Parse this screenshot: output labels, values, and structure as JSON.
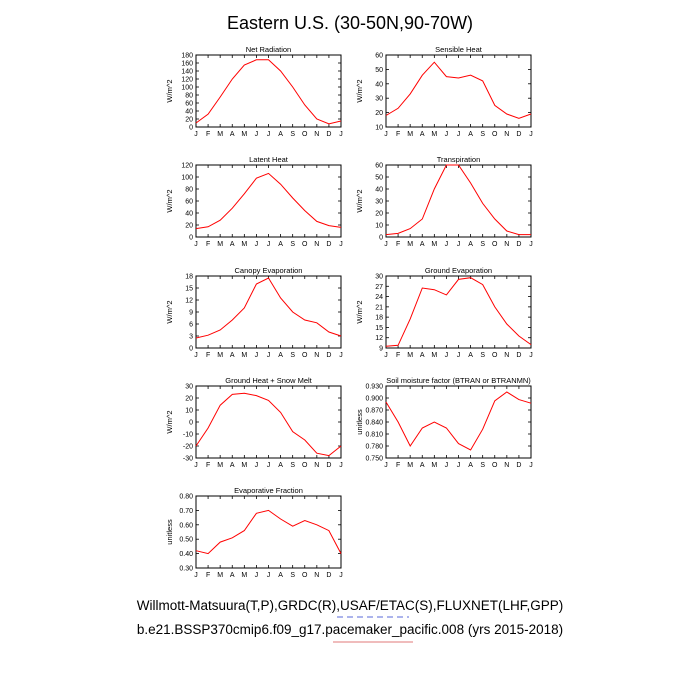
{
  "title": "Eastern U.S. (30-50N,90-70W)",
  "months": [
    "J",
    "F",
    "M",
    "A",
    "M",
    "J",
    "J",
    "A",
    "S",
    "O",
    "N",
    "D",
    "J"
  ],
  "footer": {
    "line1": "Willmott-Matsuura(T,P),GRDC(R),USAF/ETAC(S),FLUXNET(LHF,GPP)",
    "line2": "b.e21.BSSP370cmip6.f09_g17.pacemaker_pacific.008 (yrs 2015-2018)"
  },
  "colors": {
    "series": "#ff0000",
    "underline_blue": "#5a6ad8",
    "underline_red": "#e07a7a"
  },
  "chart_data": [
    {
      "type": "line",
      "title": "Net Radiation",
      "ylabel": "W/m^2",
      "ylim": [
        0,
        180
      ],
      "yticks": [
        0,
        20,
        40,
        60,
        80,
        100,
        120,
        140,
        160,
        180
      ],
      "ytick_labels": [
        "0",
        "20",
        "40",
        "60",
        "80",
        "100",
        "120",
        "140",
        "160",
        "180"
      ],
      "values": [
        10,
        32,
        75,
        120,
        155,
        168,
        168,
        140,
        100,
        55,
        20,
        8,
        15
      ]
    },
    {
      "type": "line",
      "title": "Sensible Heat",
      "ylabel": "W/m^2",
      "ylim": [
        10,
        60
      ],
      "yticks": [
        10,
        20,
        30,
        40,
        50,
        60
      ],
      "ytick_labels": [
        "10",
        "20",
        "30",
        "40",
        "50",
        "60"
      ],
      "values": [
        18,
        23,
        33,
        46,
        55,
        45,
        44,
        46,
        42,
        25,
        19,
        16,
        19
      ]
    },
    {
      "type": "line",
      "title": "Latent Heat",
      "ylabel": "W/m^2",
      "ylim": [
        0,
        120
      ],
      "yticks": [
        0,
        20,
        40,
        60,
        80,
        100,
        120
      ],
      "ytick_labels": [
        "0",
        "20",
        "40",
        "60",
        "80",
        "100",
        "120"
      ],
      "values": [
        14,
        17,
        28,
        48,
        72,
        98,
        106,
        88,
        65,
        44,
        26,
        19,
        16
      ]
    },
    {
      "type": "line",
      "title": "Transpiration",
      "ylabel": "W/m^2",
      "ylim": [
        0,
        60
      ],
      "yticks": [
        0,
        10,
        20,
        30,
        40,
        50,
        60
      ],
      "ytick_labels": [
        "0",
        "10",
        "20",
        "30",
        "40",
        "50",
        "60"
      ],
      "values": [
        2,
        3,
        7,
        15,
        40,
        60,
        60,
        45,
        28,
        15,
        5,
        2,
        2
      ]
    },
    {
      "type": "line",
      "title": "Canopy Evaporation",
      "ylabel": "W/m^2",
      "ylim": [
        0,
        18
      ],
      "yticks": [
        0,
        3,
        6,
        9,
        12,
        15,
        18
      ],
      "ytick_labels": [
        "0",
        "3",
        "6",
        "9",
        "12",
        "15",
        "18"
      ],
      "values": [
        2.5,
        3.2,
        4.5,
        7,
        10,
        16,
        17.5,
        12.5,
        9,
        7,
        6.3,
        4,
        3
      ]
    },
    {
      "type": "line",
      "title": "Ground Evaporation",
      "ylabel": "W/m^2",
      "ylim": [
        9,
        30
      ],
      "yticks": [
        9,
        12,
        15,
        18,
        21,
        24,
        27,
        30
      ],
      "ytick_labels": [
        "9",
        "12",
        "15",
        "18",
        "21",
        "24",
        "27",
        "30"
      ],
      "values": [
        9.5,
        9.8,
        17.5,
        26.5,
        26,
        24.5,
        29,
        29.5,
        27.5,
        21,
        16,
        12.5,
        10
      ]
    },
    {
      "type": "line",
      "title": "Ground Heat + Snow Melt",
      "ylabel": "W/m^2",
      "ylim": [
        -30,
        30
      ],
      "yticks": [
        -30,
        -20,
        -10,
        0,
        10,
        20,
        30
      ],
      "ytick_labels": [
        "-30",
        "-20",
        "-10",
        "0",
        "10",
        "20",
        "30"
      ],
      "values": [
        -20,
        -5,
        14,
        23,
        24,
        22,
        18,
        8,
        -8,
        -15,
        -26,
        -28,
        -20
      ]
    },
    {
      "type": "line",
      "title": "Soil moisture factor (BTRAN or BTRANMN)",
      "ylabel": "unitless",
      "ylim": [
        0.75,
        0.93
      ],
      "yticks": [
        0.75,
        0.78,
        0.81,
        0.84,
        0.87,
        0.9,
        0.93
      ],
      "ytick_labels": [
        "0.750",
        "0.780",
        "0.810",
        "0.840",
        "0.870",
        "0.900",
        "0.930"
      ],
      "values": [
        0.89,
        0.84,
        0.78,
        0.825,
        0.84,
        0.825,
        0.786,
        0.77,
        0.822,
        0.893,
        0.915,
        0.896,
        0.887
      ]
    },
    {
      "type": "line",
      "title": "Evaporative Fraction",
      "ylabel": "unitless",
      "ylim": [
        0.3,
        0.8
      ],
      "yticks": [
        0.3,
        0.4,
        0.5,
        0.6,
        0.7,
        0.8
      ],
      "ytick_labels": [
        "0.30",
        "0.40",
        "0.50",
        "0.60",
        "0.70",
        "0.80"
      ],
      "values": [
        0.42,
        0.4,
        0.48,
        0.51,
        0.56,
        0.68,
        0.7,
        0.64,
        0.59,
        0.63,
        0.6,
        0.56,
        0.4
      ]
    }
  ]
}
